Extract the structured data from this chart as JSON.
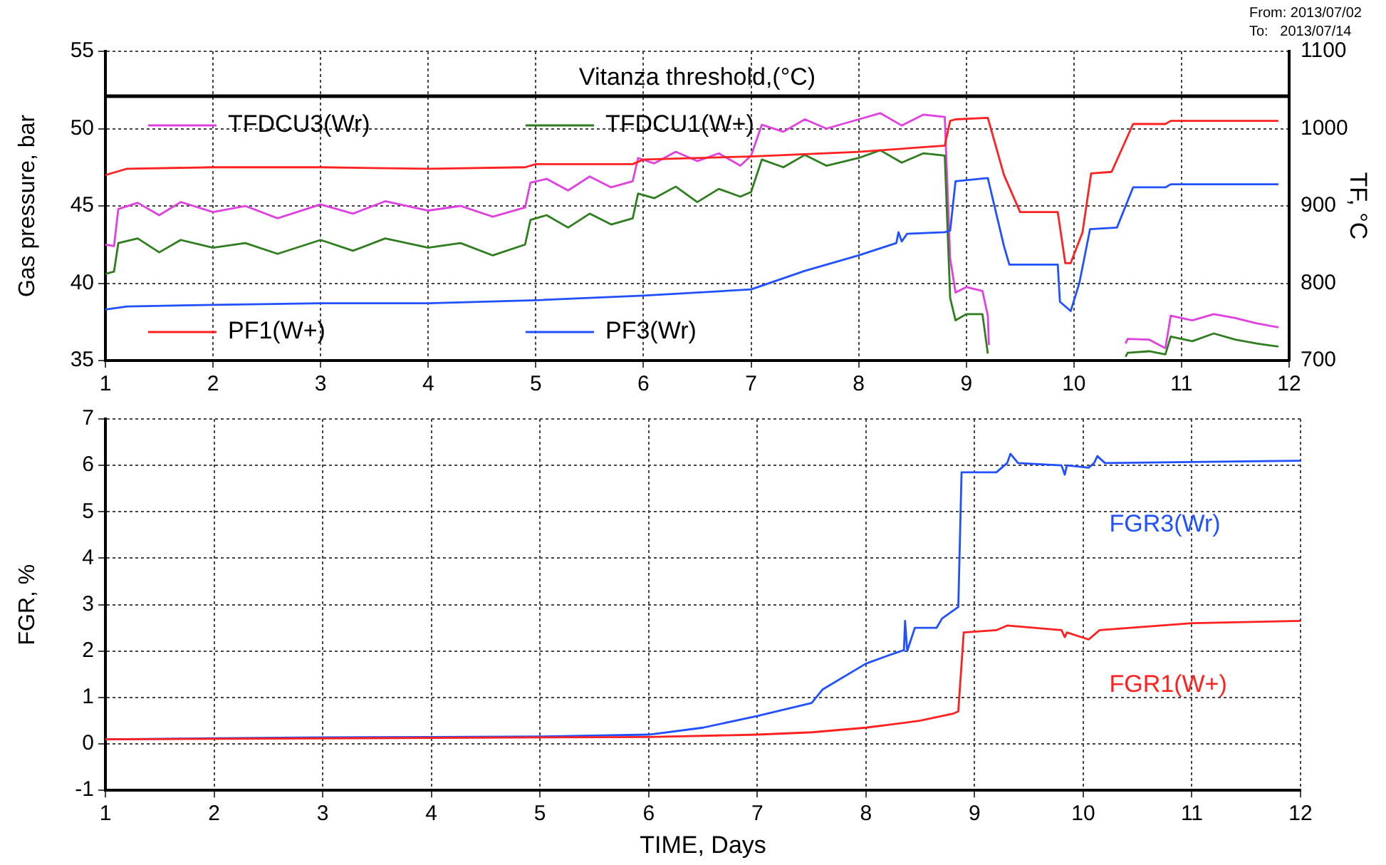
{
  "chart_data": [
    {
      "type": "line",
      "ylabel": "Gas pressure, bar",
      "y2label": "TF, °C",
      "xlim": [
        1,
        12
      ],
      "xticks": [
        1,
        2,
        3,
        4,
        5,
        6,
        7,
        8,
        9,
        10,
        11,
        12
      ],
      "ylim": [
        35,
        55
      ],
      "yticks": [
        35,
        40,
        45,
        50,
        55
      ],
      "y2lim": [
        700,
        1100
      ],
      "y2ticks": [
        700,
        800,
        900,
        1000,
        1100
      ],
      "grid": true,
      "legend": "left",
      "annotations": [
        "From: 2013/07/02",
        "To:   2013/07/14"
      ],
      "ref_lines": [
        {
          "axis": "y2",
          "value": 1042,
          "label": "Vitanza threshold,(°C)",
          "color": "#000000"
        }
      ],
      "series": [
        {
          "name": "TFDCU3(Wr)",
          "color": "#e040e0",
          "axis": "y2",
          "x": [
            1,
            1.08,
            1.12,
            1.3,
            1.5,
            1.7,
            2,
            2.3,
            2.6,
            3,
            3.3,
            3.6,
            4,
            4.3,
            4.6,
            4.9,
            4.95,
            5.1,
            5.3,
            5.5,
            5.7,
            5.9,
            5.95,
            6.1,
            6.3,
            6.5,
            6.7,
            6.9,
            7.0,
            7.1,
            7.3,
            7.5,
            7.7,
            8,
            8.2,
            8.4,
            8.6,
            8.8,
            8.85,
            8.9,
            9.0,
            9.15,
            9.2,
            9.21,
            9.3,
            10.48,
            10.5,
            10.7,
            10.85,
            10.9,
            11.1,
            11.3,
            11.5,
            11.7,
            11.9
          ],
          "values": [
            850,
            848,
            896,
            904,
            888,
            905,
            892,
            900,
            884,
            902,
            890,
            906,
            894,
            900,
            886,
            898,
            930,
            935,
            920,
            938,
            924,
            932,
            962,
            955,
            970,
            958,
            968,
            952,
            965,
            1005,
            996,
            1012,
            1000,
            1012,
            1020,
            1004,
            1018,
            1015,
            832,
            788,
            795,
            790,
            758,
            720,
            null,
            722,
            728,
            727,
            716,
            758,
            752,
            760,
            755,
            748,
            743
          ]
        },
        {
          "name": "TFDCU1(W+)",
          "color": "#2e7d1e",
          "axis": "y2",
          "x": [
            1,
            1.08,
            1.12,
            1.3,
            1.5,
            1.7,
            2,
            2.3,
            2.6,
            3,
            3.3,
            3.6,
            4,
            4.3,
            4.6,
            4.9,
            4.95,
            5.1,
            5.3,
            5.5,
            5.7,
            5.9,
            5.95,
            6.1,
            6.3,
            6.5,
            6.7,
            6.9,
            7.0,
            7.1,
            7.3,
            7.5,
            7.7,
            8,
            8.2,
            8.4,
            8.6,
            8.8,
            8.85,
            8.9,
            9.0,
            9.15,
            9.2,
            9.3,
            10.48,
            10.5,
            10.7,
            10.85,
            10.9,
            11.1,
            11.3,
            11.5,
            11.7,
            11.9
          ],
          "values": [
            812,
            815,
            852,
            858,
            840,
            856,
            846,
            852,
            838,
            856,
            842,
            858,
            846,
            852,
            836,
            850,
            882,
            888,
            872,
            890,
            876,
            884,
            916,
            910,
            925,
            905,
            922,
            912,
            918,
            960,
            950,
            966,
            952,
            962,
            972,
            956,
            968,
            965,
            781,
            752,
            760,
            760,
            709,
            null,
            705,
            710,
            712,
            708,
            731,
            725,
            735,
            727,
            722,
            718
          ]
        },
        {
          "name": "PF1(W+)",
          "color": "#ff2020",
          "axis": "y",
          "x": [
            1,
            1.1,
            1.2,
            2,
            3,
            4,
            4.9,
            5.0,
            5.9,
            6.0,
            7,
            8,
            8.8,
            8.85,
            8.9,
            9.2,
            9.35,
            9.5,
            9.85,
            9.92,
            9.97,
            10.08,
            10.16,
            10.35,
            10.55,
            10.85,
            10.9,
            11.9
          ],
          "values": [
            47.0,
            47.2,
            47.4,
            47.5,
            47.5,
            47.4,
            47.5,
            47.7,
            47.7,
            48.0,
            48.2,
            48.5,
            48.9,
            50.5,
            50.6,
            50.7,
            47.0,
            44.6,
            44.6,
            41.3,
            41.3,
            43.3,
            47.1,
            47.2,
            50.3,
            50.3,
            50.5,
            50.5
          ]
        },
        {
          "name": "PF3(Wr)",
          "color": "#2050ff",
          "axis": "y",
          "x": [
            1,
            1.2,
            2,
            3,
            4,
            5,
            6,
            7,
            7.5,
            8,
            8.35,
            8.37,
            8.4,
            8.45,
            8.8,
            8.85,
            8.9,
            9.2,
            9.35,
            9.4,
            9.85,
            9.87,
            9.97,
            10.05,
            10.15,
            10.4,
            10.55,
            10.85,
            10.9,
            11.9
          ],
          "values": [
            38.3,
            38.5,
            38.6,
            38.7,
            38.7,
            38.9,
            39.2,
            39.6,
            40.8,
            41.8,
            42.6,
            43.3,
            42.7,
            43.2,
            43.3,
            43.4,
            46.6,
            46.8,
            42.4,
            41.2,
            41.2,
            38.8,
            38.2,
            40.0,
            43.5,
            43.6,
            46.2,
            46.2,
            46.4,
            46.4
          ]
        }
      ]
    },
    {
      "type": "line",
      "xlabel": "TIME, Days",
      "ylabel": "FGR, %",
      "xlim": [
        1,
        12
      ],
      "xticks": [
        1,
        2,
        3,
        4,
        5,
        6,
        7,
        8,
        9,
        10,
        11,
        12
      ],
      "ylim": [
        -1,
        7
      ],
      "yticks": [
        -1,
        0,
        1,
        2,
        3,
        4,
        5,
        6,
        7
      ],
      "grid": true,
      "series": [
        {
          "name": "FGR3(Wr)",
          "color": "#2050ff",
          "x": [
            1,
            2,
            3,
            4,
            5,
            6,
            6.5,
            7,
            7.5,
            7.6,
            8,
            8.2,
            8.35,
            8.36,
            8.38,
            8.45,
            8.65,
            8.7,
            8.85,
            8.88,
            9.2,
            9.3,
            9.33,
            9.4,
            9.8,
            9.83,
            9.85,
            10.05,
            10.1,
            10.13,
            10.2,
            12
          ],
          "values": [
            0.1,
            0.12,
            0.14,
            0.15,
            0.16,
            0.2,
            0.35,
            0.6,
            0.88,
            1.17,
            1.73,
            1.9,
            2.02,
            2.65,
            2.0,
            2.5,
            2.5,
            2.7,
            2.95,
            5.85,
            5.85,
            6.05,
            6.25,
            6.05,
            6.0,
            5.8,
            6.0,
            5.95,
            6.05,
            6.2,
            6.05,
            6.1
          ]
        },
        {
          "name": "FGR1(W+)",
          "color": "#ff2020",
          "x": [
            1,
            6,
            7,
            7.5,
            8,
            8.5,
            8.8,
            8.85,
            8.9,
            9.2,
            9.3,
            9.8,
            9.83,
            9.85,
            10.05,
            10.15,
            11,
            12
          ],
          "values": [
            0.1,
            0.15,
            0.2,
            0.25,
            0.35,
            0.5,
            0.65,
            0.7,
            2.4,
            2.45,
            2.55,
            2.45,
            2.3,
            2.4,
            2.25,
            2.45,
            2.6,
            2.65
          ]
        }
      ]
    }
  ]
}
